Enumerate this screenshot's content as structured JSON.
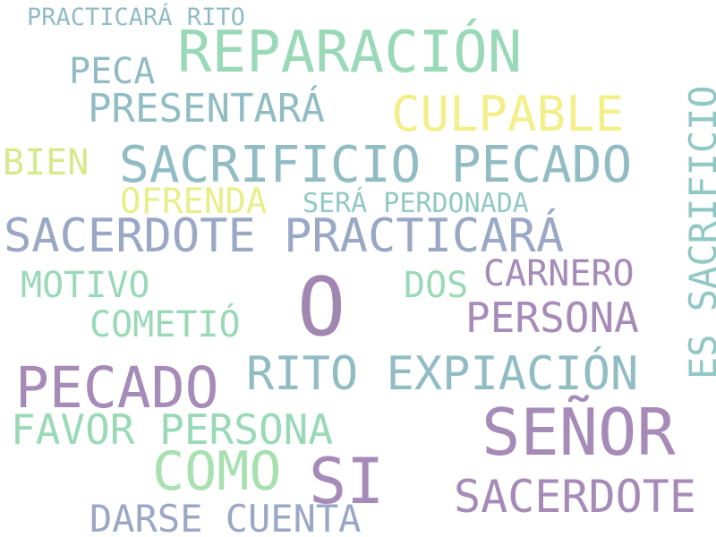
{
  "palette": {
    "teal": "#92bcc4",
    "mint": "#9ad9b8",
    "yellow": "#f3ef8a",
    "lime": "#d6e98b",
    "slate": "#9aa8c6",
    "purple": "#a68bb8"
  },
  "words": [
    {
      "text": "PRACTICARÁ RITO",
      "color": "#92bcc4"
    },
    {
      "text": "REPARACIÓN",
      "color": "#9ad9b8"
    },
    {
      "text": "PECA",
      "color": "#92bcc4"
    },
    {
      "text": "PRESENTARÁ",
      "color": "#92bcc4"
    },
    {
      "text": "CULPABLE",
      "color": "#f3ef8a"
    },
    {
      "text": "ES SACRIFICIO",
      "color": "#92c8c4"
    },
    {
      "text": "BIEN",
      "color": "#d6e98b"
    },
    {
      "text": "SACRIFICIO PECADO",
      "color": "#92bcc4"
    },
    {
      "text": "OFRENDA",
      "color": "#e8ef8a"
    },
    {
      "text": "SERÁ PERDONADA",
      "color": "#92c8c4"
    },
    {
      "text": "SACERDOTE PRACTICARÁ",
      "color": "#9aa8c6"
    },
    {
      "text": "MOTIVO",
      "color": "#9ad9b8"
    },
    {
      "text": "DOS",
      "color": "#9ad9b8"
    },
    {
      "text": "CARNERO",
      "color": "#a68bb8"
    },
    {
      "text": "O",
      "color": "#a086b0"
    },
    {
      "text": "COMETIÓ",
      "color": "#9ad9b8"
    },
    {
      "text": "PERSONA",
      "color": "#a68bb8"
    },
    {
      "text": "PECADO",
      "color": "#a68bb8"
    },
    {
      "text": "RITO EXPIACIÓN",
      "color": "#92bcc4"
    },
    {
      "text": "SEÑOR",
      "color": "#a68bb8"
    },
    {
      "text": "FAVOR PERSONA",
      "color": "#9ad9b8"
    },
    {
      "text": "COMO",
      "color": "#a8e0b0"
    },
    {
      "text": "SI",
      "color": "#a68bb8"
    },
    {
      "text": "SACERDOTE",
      "color": "#a68bb8"
    },
    {
      "text": "DARSE CUENTA",
      "color": "#9aa8c6"
    }
  ]
}
